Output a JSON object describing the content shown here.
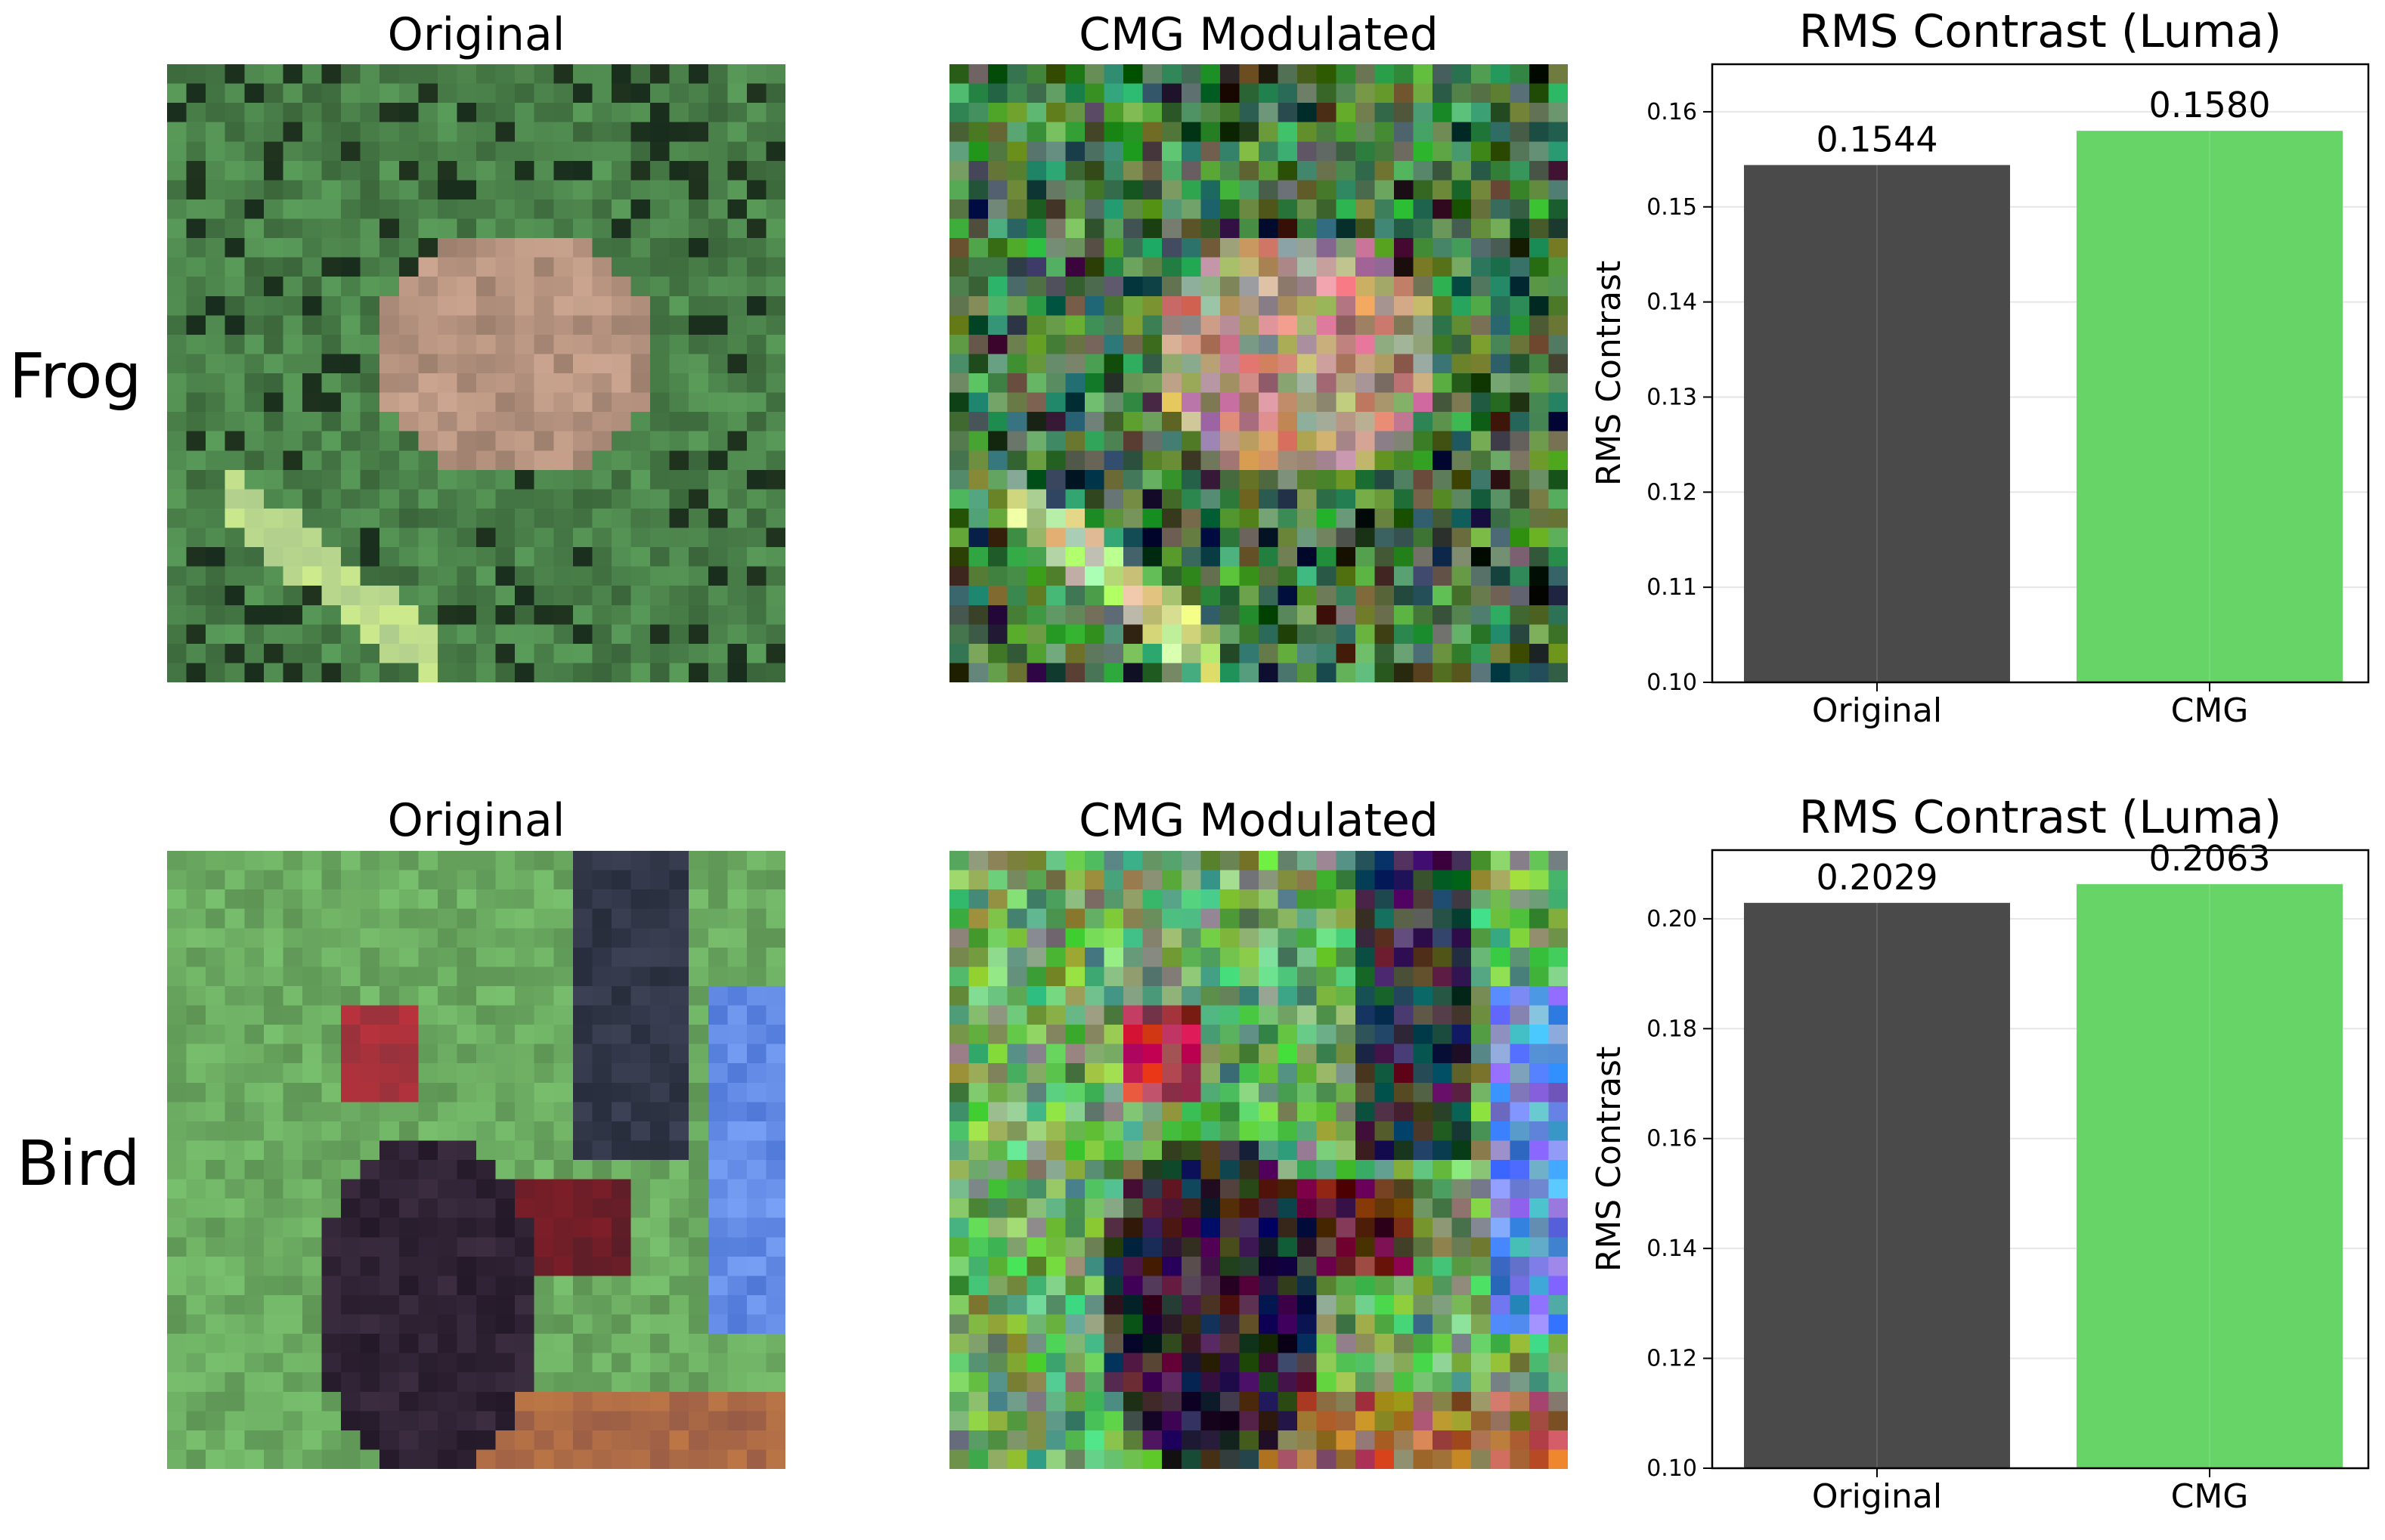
{
  "rows": [
    {
      "label": "Frog",
      "original_title": "Original",
      "modulated_title": "CMG Modulated"
    },
    {
      "label": "Bird",
      "original_title": "Original",
      "modulated_title": "CMG Modulated"
    }
  ],
  "colors": {
    "original_bar": "#4a4a4a",
    "cmg_bar": "#66d466",
    "grid": "#e6e6e6"
  },
  "chart_data": [
    {
      "type": "bar",
      "title": "RMS Contrast (Luma)",
      "ylabel": "RMS Contrast",
      "categories": [
        "Original",
        "CMG"
      ],
      "values": [
        0.1544,
        0.158
      ],
      "value_labels": [
        "0.1544",
        "0.1580"
      ],
      "ylim": [
        0.1,
        0.165
      ],
      "yticks": [
        "0.10",
        "0.11",
        "0.12",
        "0.13",
        "0.14",
        "0.15",
        "0.16"
      ],
      "grid": true
    },
    {
      "type": "bar",
      "title": "RMS Contrast (Luma)",
      "ylabel": "RMS Contrast",
      "categories": [
        "Original",
        "CMG"
      ],
      "values": [
        0.2029,
        0.2063
      ],
      "value_labels": [
        "0.2029",
        "0.2063"
      ],
      "ylim": [
        0.1,
        0.2125
      ],
      "yticks": [
        "0.10",
        "0.12",
        "0.14",
        "0.16",
        "0.18",
        "0.20"
      ],
      "grid": true
    }
  ]
}
